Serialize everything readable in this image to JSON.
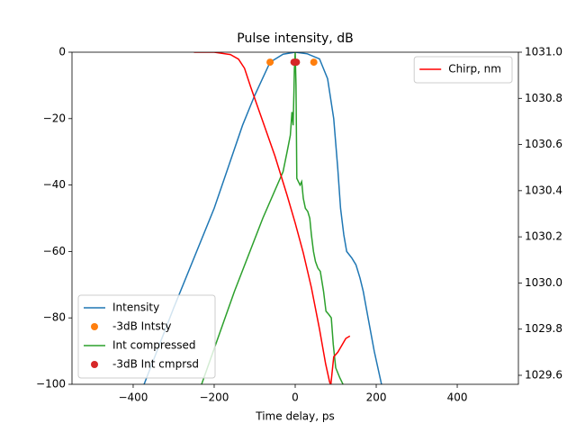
{
  "chart_data": {
    "type": "line",
    "title": "Pulse intensity, dB",
    "x_label": "Time delay, ps",
    "xlim": [
      -551,
      551
    ],
    "ylim": [
      -100,
      0
    ],
    "y2lim": [
      1029.561,
      1031.0
    ],
    "xticks": [
      {
        "value": -400,
        "label": "−400"
      },
      {
        "value": -200,
        "label": "−200"
      },
      0,
      200,
      400
    ],
    "yticks": [
      0,
      {
        "value": -20,
        "label": "−20"
      },
      {
        "value": -40,
        "label": "−40"
      },
      {
        "value": -60,
        "label": "−60"
      },
      {
        "value": -80,
        "label": "−80"
      },
      {
        "value": -100,
        "label": "−100"
      }
    ],
    "y2ticks": [
      {
        "value": 1031.0,
        "label": "1031.0"
      },
      1030.8,
      1030.6,
      1030.4,
      1030.2,
      {
        "value": 1030.0,
        "label": "1030.0"
      },
      1029.8,
      1029.6
    ],
    "legend": "lower left",
    "legend2": "upper right",
    "series": [
      {
        "name": "Intensity",
        "color": "#1f77b4",
        "style": "line",
        "x": [
          -373,
          -300,
          -200,
          -130,
          -100,
          -62,
          -30,
          0,
          30,
          60,
          80,
          95,
          105,
          112,
          120,
          127,
          140,
          150,
          160,
          168,
          180,
          195,
          213
        ],
        "values": [
          -100,
          -77,
          -47,
          -22,
          -13,
          -3,
          -0.6,
          0,
          -0.5,
          -2,
          -8,
          -20,
          -35,
          -47,
          -55,
          -60,
          -62,
          -64,
          -68,
          -72,
          -80,
          -90,
          -100
        ]
      },
      {
        "name": "-3dB Intsty",
        "color": "#ff7f0e",
        "style": "marker",
        "x": [
          -62,
          46
        ],
        "values": [
          -3,
          -3
        ]
      },
      {
        "name": "Int compressed",
        "color": "#2ca02c",
        "style": "line",
        "x": [
          -231,
          -150,
          -80,
          -30,
          -20,
          -12,
          -8,
          -5,
          -3,
          -2,
          0,
          2,
          4,
          8,
          12,
          16,
          20,
          25,
          31,
          36,
          40,
          45,
          50,
          56,
          62,
          70,
          76,
          83,
          89,
          94,
          100,
          110,
          118
        ],
        "values": [
          -100,
          -72,
          -50,
          -36,
          -30,
          -25,
          -18,
          -22,
          -12,
          -5,
          0,
          -10,
          -38,
          -39,
          -40,
          -39,
          -44,
          -47,
          -48,
          -50,
          -55,
          -60,
          -63,
          -65,
          -66,
          -72,
          -78,
          -79,
          -80,
          -88,
          -95,
          -98,
          -100
        ]
      },
      {
        "name": "-3dB Int cmprsd",
        "color": "#d62728",
        "style": "marker",
        "x": [
          -3,
          3
        ],
        "values": [
          -3,
          -3
        ]
      },
      {
        "name": "Chirp, nm",
        "color": "#ff0000",
        "style": "line",
        "axis": "y2",
        "x": [
          -250,
          -200,
          -160,
          -140,
          -125,
          -110,
          -80,
          -50,
          -20,
          0,
          20,
          40,
          60,
          75,
          85,
          88,
          95,
          105,
          115,
          125,
          135
        ],
        "values": [
          1031.0,
          1031.0,
          1030.99,
          1030.97,
          1030.93,
          1030.85,
          1030.7,
          1030.55,
          1030.38,
          1030.26,
          1030.13,
          1029.98,
          1029.8,
          1029.65,
          1029.57,
          1029.56,
          1029.68,
          1029.7,
          1029.73,
          1029.76,
          1029.77
        ]
      }
    ]
  }
}
